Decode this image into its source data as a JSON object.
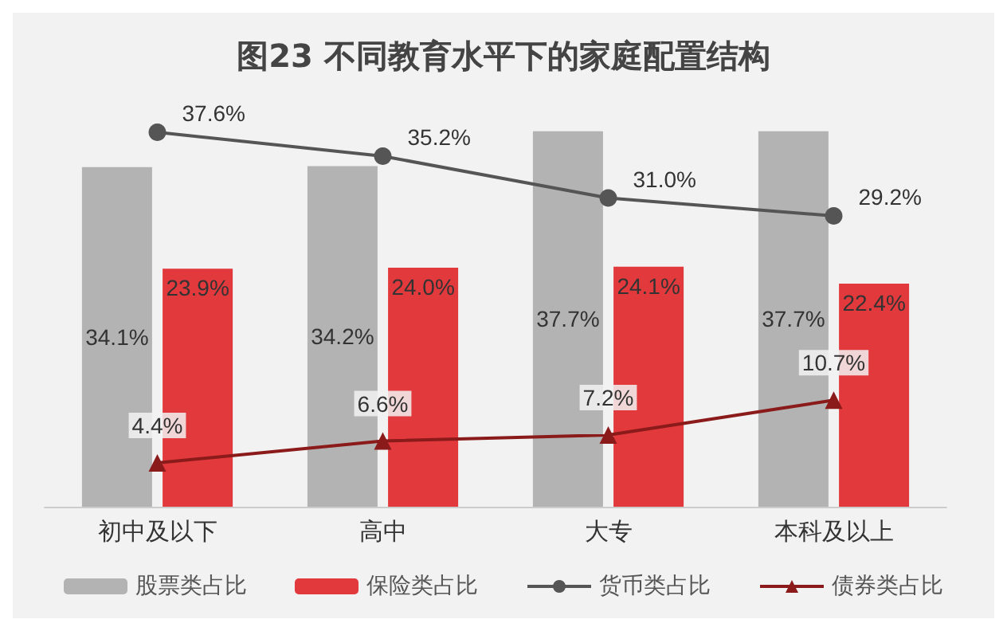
{
  "chart_data": {
    "type": "bar",
    "title": "图23 不同教育水平下的家庭配置结构",
    "categories": [
      "初中及以下",
      "高中",
      "大专",
      "本科及以上"
    ],
    "series": [
      {
        "name": "股票类占比",
        "color": "#b3b3b3",
        "values": [
          34.1,
          34.2,
          37.7,
          37.7
        ],
        "value_labels": [
          "34.1%",
          "34.2%",
          "37.7%",
          "37.7%"
        ]
      },
      {
        "name": "保险类占比",
        "color": "#e2393d",
        "values": [
          23.9,
          24.0,
          24.1,
          22.4
        ],
        "value_labels": [
          "23.9%",
          "24.0%",
          "24.1%",
          "22.4%"
        ]
      },
      {
        "name": "货币类占比",
        "type": "line",
        "marker": "circle",
        "color": "#555555",
        "values": [
          37.6,
          35.2,
          31.0,
          29.2
        ],
        "value_labels": [
          "37.6%",
          "35.2%",
          "31.0%",
          "29.2%"
        ]
      },
      {
        "name": "债券类占比",
        "type": "line",
        "marker": "triangle",
        "color": "#8b1a1a",
        "values": [
          4.4,
          6.6,
          7.2,
          10.7
        ],
        "value_labels": [
          "4.4%",
          "6.6%",
          "7.2%",
          "10.7%"
        ]
      }
    ],
    "legend": "bottom"
  }
}
